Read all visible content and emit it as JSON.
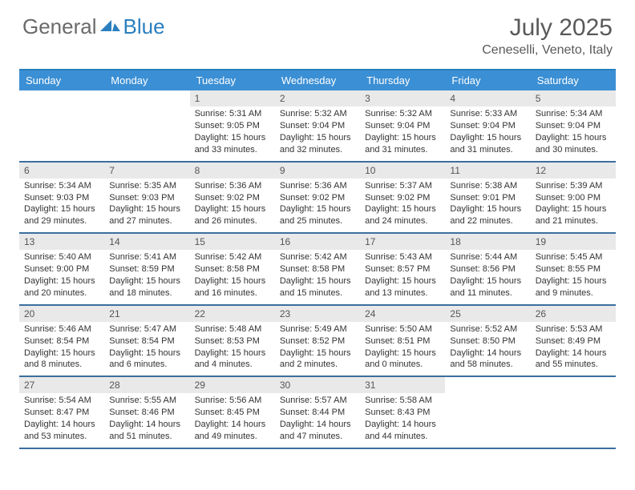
{
  "logo": {
    "general": "General",
    "blue": "Blue"
  },
  "title": "July 2025",
  "location": "Ceneselli, Veneto, Italy",
  "colors": {
    "header_bg": "#3b8fd4",
    "header_text": "#ffffff",
    "border": "#3b6fa0",
    "daynum_bg": "#e9e9e9",
    "logo_accent": "#2a7fbf"
  },
  "day_names": [
    "Sunday",
    "Monday",
    "Tuesday",
    "Wednesday",
    "Thursday",
    "Friday",
    "Saturday"
  ],
  "weeks": [
    [
      {
        "n": "",
        "sr": "",
        "ss": "",
        "dl": ""
      },
      {
        "n": "",
        "sr": "",
        "ss": "",
        "dl": ""
      },
      {
        "n": "1",
        "sr": "Sunrise: 5:31 AM",
        "ss": "Sunset: 9:05 PM",
        "dl": "Daylight: 15 hours and 33 minutes."
      },
      {
        "n": "2",
        "sr": "Sunrise: 5:32 AM",
        "ss": "Sunset: 9:04 PM",
        "dl": "Daylight: 15 hours and 32 minutes."
      },
      {
        "n": "3",
        "sr": "Sunrise: 5:32 AM",
        "ss": "Sunset: 9:04 PM",
        "dl": "Daylight: 15 hours and 31 minutes."
      },
      {
        "n": "4",
        "sr": "Sunrise: 5:33 AM",
        "ss": "Sunset: 9:04 PM",
        "dl": "Daylight: 15 hours and 31 minutes."
      },
      {
        "n": "5",
        "sr": "Sunrise: 5:34 AM",
        "ss": "Sunset: 9:04 PM",
        "dl": "Daylight: 15 hours and 30 minutes."
      }
    ],
    [
      {
        "n": "6",
        "sr": "Sunrise: 5:34 AM",
        "ss": "Sunset: 9:03 PM",
        "dl": "Daylight: 15 hours and 29 minutes."
      },
      {
        "n": "7",
        "sr": "Sunrise: 5:35 AM",
        "ss": "Sunset: 9:03 PM",
        "dl": "Daylight: 15 hours and 27 minutes."
      },
      {
        "n": "8",
        "sr": "Sunrise: 5:36 AM",
        "ss": "Sunset: 9:02 PM",
        "dl": "Daylight: 15 hours and 26 minutes."
      },
      {
        "n": "9",
        "sr": "Sunrise: 5:36 AM",
        "ss": "Sunset: 9:02 PM",
        "dl": "Daylight: 15 hours and 25 minutes."
      },
      {
        "n": "10",
        "sr": "Sunrise: 5:37 AM",
        "ss": "Sunset: 9:02 PM",
        "dl": "Daylight: 15 hours and 24 minutes."
      },
      {
        "n": "11",
        "sr": "Sunrise: 5:38 AM",
        "ss": "Sunset: 9:01 PM",
        "dl": "Daylight: 15 hours and 22 minutes."
      },
      {
        "n": "12",
        "sr": "Sunrise: 5:39 AM",
        "ss": "Sunset: 9:00 PM",
        "dl": "Daylight: 15 hours and 21 minutes."
      }
    ],
    [
      {
        "n": "13",
        "sr": "Sunrise: 5:40 AM",
        "ss": "Sunset: 9:00 PM",
        "dl": "Daylight: 15 hours and 20 minutes."
      },
      {
        "n": "14",
        "sr": "Sunrise: 5:41 AM",
        "ss": "Sunset: 8:59 PM",
        "dl": "Daylight: 15 hours and 18 minutes."
      },
      {
        "n": "15",
        "sr": "Sunrise: 5:42 AM",
        "ss": "Sunset: 8:58 PM",
        "dl": "Daylight: 15 hours and 16 minutes."
      },
      {
        "n": "16",
        "sr": "Sunrise: 5:42 AM",
        "ss": "Sunset: 8:58 PM",
        "dl": "Daylight: 15 hours and 15 minutes."
      },
      {
        "n": "17",
        "sr": "Sunrise: 5:43 AM",
        "ss": "Sunset: 8:57 PM",
        "dl": "Daylight: 15 hours and 13 minutes."
      },
      {
        "n": "18",
        "sr": "Sunrise: 5:44 AM",
        "ss": "Sunset: 8:56 PM",
        "dl": "Daylight: 15 hours and 11 minutes."
      },
      {
        "n": "19",
        "sr": "Sunrise: 5:45 AM",
        "ss": "Sunset: 8:55 PM",
        "dl": "Daylight: 15 hours and 9 minutes."
      }
    ],
    [
      {
        "n": "20",
        "sr": "Sunrise: 5:46 AM",
        "ss": "Sunset: 8:54 PM",
        "dl": "Daylight: 15 hours and 8 minutes."
      },
      {
        "n": "21",
        "sr": "Sunrise: 5:47 AM",
        "ss": "Sunset: 8:54 PM",
        "dl": "Daylight: 15 hours and 6 minutes."
      },
      {
        "n": "22",
        "sr": "Sunrise: 5:48 AM",
        "ss": "Sunset: 8:53 PM",
        "dl": "Daylight: 15 hours and 4 minutes."
      },
      {
        "n": "23",
        "sr": "Sunrise: 5:49 AM",
        "ss": "Sunset: 8:52 PM",
        "dl": "Daylight: 15 hours and 2 minutes."
      },
      {
        "n": "24",
        "sr": "Sunrise: 5:50 AM",
        "ss": "Sunset: 8:51 PM",
        "dl": "Daylight: 15 hours and 0 minutes."
      },
      {
        "n": "25",
        "sr": "Sunrise: 5:52 AM",
        "ss": "Sunset: 8:50 PM",
        "dl": "Daylight: 14 hours and 58 minutes."
      },
      {
        "n": "26",
        "sr": "Sunrise: 5:53 AM",
        "ss": "Sunset: 8:49 PM",
        "dl": "Daylight: 14 hours and 55 minutes."
      }
    ],
    [
      {
        "n": "27",
        "sr": "Sunrise: 5:54 AM",
        "ss": "Sunset: 8:47 PM",
        "dl": "Daylight: 14 hours and 53 minutes."
      },
      {
        "n": "28",
        "sr": "Sunrise: 5:55 AM",
        "ss": "Sunset: 8:46 PM",
        "dl": "Daylight: 14 hours and 51 minutes."
      },
      {
        "n": "29",
        "sr": "Sunrise: 5:56 AM",
        "ss": "Sunset: 8:45 PM",
        "dl": "Daylight: 14 hours and 49 minutes."
      },
      {
        "n": "30",
        "sr": "Sunrise: 5:57 AM",
        "ss": "Sunset: 8:44 PM",
        "dl": "Daylight: 14 hours and 47 minutes."
      },
      {
        "n": "31",
        "sr": "Sunrise: 5:58 AM",
        "ss": "Sunset: 8:43 PM",
        "dl": "Daylight: 14 hours and 44 minutes."
      },
      {
        "n": "",
        "sr": "",
        "ss": "",
        "dl": ""
      },
      {
        "n": "",
        "sr": "",
        "ss": "",
        "dl": ""
      }
    ]
  ]
}
